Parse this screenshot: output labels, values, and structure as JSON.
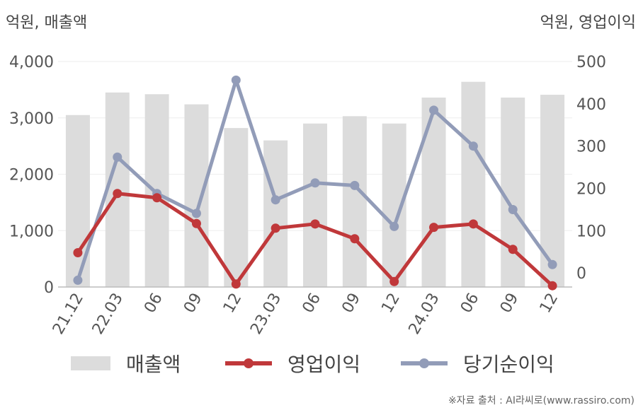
{
  "unit_left": "억원, 매출액",
  "unit_right": "억원, 영업이익",
  "source": "※자료 출처 : AI라씨로(www.rassiro.com)",
  "colors": {
    "bar": "#dcdcdc",
    "operating_profit": "#c0383a",
    "net_income": "#929cb8",
    "axis": "#bbbbbb",
    "grid": "#eeeeee"
  },
  "chart_data": {
    "type": "bar+line",
    "categories": [
      "21.12",
      "22.03",
      "06",
      "09",
      "12",
      "23.03",
      "06",
      "09",
      "12",
      "24.03",
      "06",
      "09",
      "12"
    ],
    "left_axis": {
      "label": "억원, 매출액",
      "ylim": [
        0,
        4000
      ],
      "ticks": [
        0,
        1000,
        2000,
        3000,
        4000
      ],
      "tick_labels": [
        "0",
        "1,000",
        "2,000",
        "3,000",
        "4,000"
      ]
    },
    "right_axis": {
      "label": "억원, 영업이익",
      "ylim": [
        -33,
        500
      ],
      "ticks": [
        0,
        100,
        200,
        300,
        400,
        500
      ],
      "tick_labels": [
        "0",
        "100",
        "200",
        "300",
        "400",
        "500"
      ]
    },
    "series": [
      {
        "name": "매출액",
        "type": "bar",
        "axis": "left",
        "values": [
          3050,
          3450,
          3420,
          3240,
          2820,
          2600,
          2900,
          3030,
          2900,
          3360,
          3640,
          3360,
          3410
        ]
      },
      {
        "name": "영업이익",
        "type": "line",
        "axis": "right",
        "values": [
          48,
          188,
          178,
          117,
          -26,
          106,
          116,
          81,
          -20,
          108,
          116,
          56,
          -30
        ]
      },
      {
        "name": "당기순이익",
        "type": "line",
        "axis": "right",
        "values": [
          -17,
          274,
          188,
          141,
          456,
          173,
          213,
          207,
          110,
          385,
          300,
          150,
          20
        ]
      }
    ],
    "grid": true,
    "legend_position": "bottom"
  }
}
